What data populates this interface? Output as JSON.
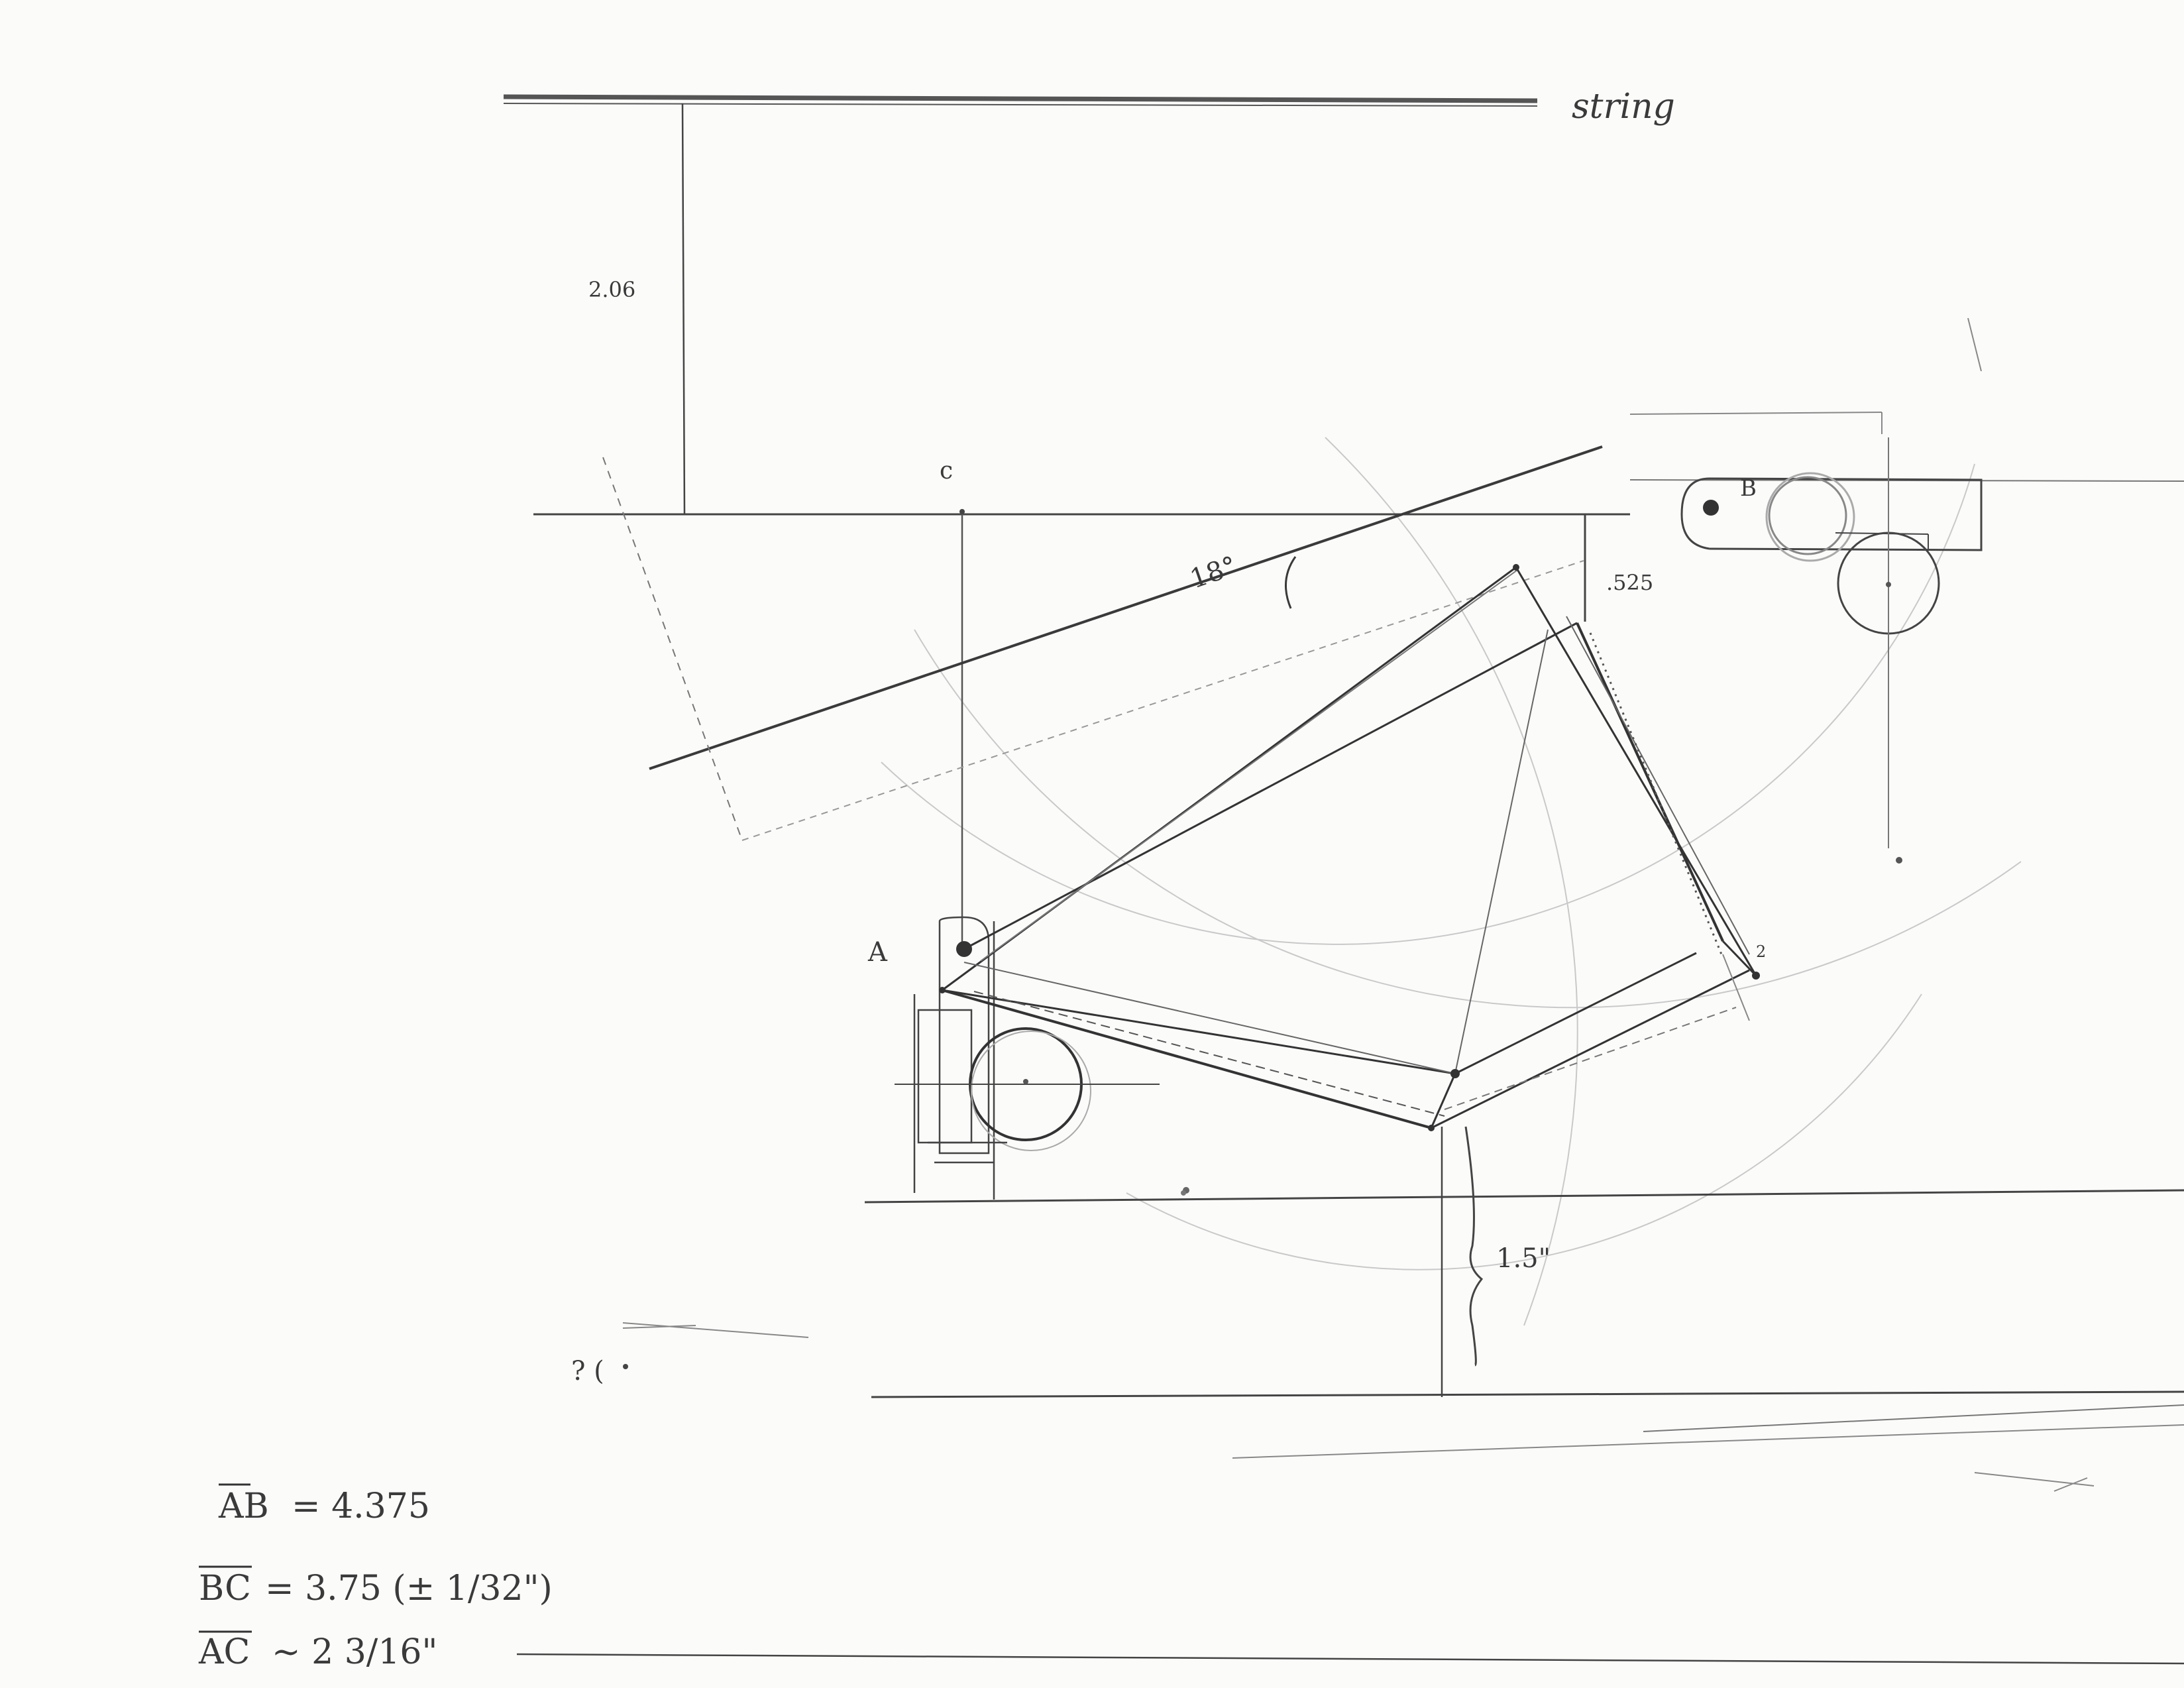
{
  "labels": {
    "string": "string",
    "dim_206": "2.06",
    "point_c": "c",
    "point_b": "B",
    "point_a": "A",
    "angle": "18°",
    "dim_525": ".525",
    "dim_15": "1.5\"",
    "question": "? (",
    "num_2": "2"
  },
  "measurements": [
    {
      "label": "AB",
      "value": "= 4.375"
    },
    {
      "label": "BC",
      "value": "= 3.75 (± 1/32\")"
    },
    {
      "label": "AC",
      "value": "~ 2 3/16\""
    }
  ]
}
